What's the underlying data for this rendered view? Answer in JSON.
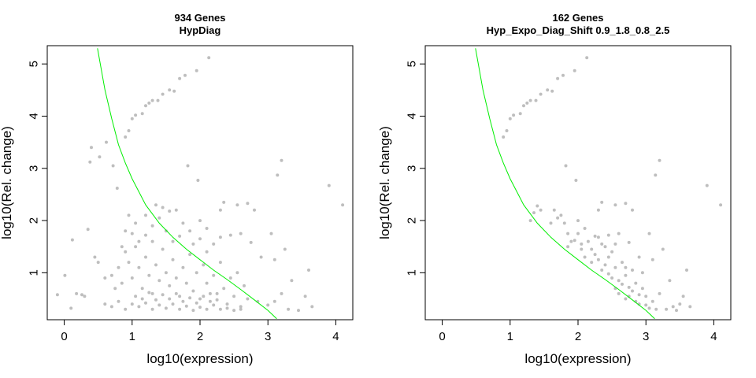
{
  "chart_data": [
    {
      "type": "scatter",
      "title": "934 Genes",
      "subtitle": "HypDiag",
      "xlabel": "log10(expression)",
      "ylabel": "log10(Rel. change)",
      "xlim": [
        -0.25,
        4.25
      ],
      "ylim": [
        0.1,
        5.35
      ],
      "xticks": [
        "0",
        "1",
        "2",
        "3",
        "4"
      ],
      "yticks": [
        "1",
        "2",
        "3",
        "4",
        "5"
      ],
      "grid": false,
      "point_color": "#bebebe",
      "curve_color": "#00ee00",
      "curve": [
        [
          0.49,
          5.3
        ],
        [
          0.6,
          4.5
        ],
        [
          0.7,
          3.95
        ],
        [
          0.8,
          3.45
        ],
        [
          0.9,
          3.1
        ],
        [
          1.0,
          2.8
        ],
        [
          1.2,
          2.3
        ],
        [
          1.4,
          1.95
        ],
        [
          1.6,
          1.68
        ],
        [
          1.8,
          1.45
        ],
        [
          2.0,
          1.25
        ],
        [
          2.2,
          1.05
        ],
        [
          2.4,
          0.87
        ],
        [
          2.6,
          0.68
        ],
        [
          2.8,
          0.48
        ],
        [
          3.0,
          0.28
        ],
        [
          3.13,
          0.12
        ]
      ],
      "points": [
        [
          1.78,
          4.78
        ],
        [
          2.13,
          5.12
        ],
        [
          1.95,
          4.87
        ],
        [
          1.55,
          4.5
        ],
        [
          1.45,
          4.42
        ],
        [
          1.3,
          4.3
        ],
        [
          1.25,
          4.25
        ],
        [
          1.2,
          4.2
        ],
        [
          1.05,
          4.02
        ],
        [
          1.0,
          3.95
        ],
        [
          1.15,
          4.05
        ],
        [
          0.95,
          3.72
        ],
        [
          0.9,
          3.6
        ],
        [
          1.62,
          4.48
        ],
        [
          1.7,
          4.72
        ],
        [
          1.38,
          4.3
        ],
        [
          0.4,
          3.4
        ],
        [
          0.52,
          3.22
        ],
        [
          0.62,
          3.5
        ],
        [
          0.38,
          3.12
        ],
        [
          0.72,
          3.05
        ],
        [
          0.78,
          2.62
        ],
        [
          3.2,
          3.15
        ],
        [
          3.14,
          2.87
        ],
        [
          3.9,
          2.67
        ],
        [
          4.1,
          2.3
        ],
        [
          1.97,
          2.77
        ],
        [
          1.82,
          3.05
        ],
        [
          0.12,
          1.63
        ],
        [
          0.35,
          1.83
        ],
        [
          0.18,
          0.6
        ],
        [
          0.01,
          0.95
        ],
        [
          -0.1,
          0.58
        ],
        [
          0.1,
          0.32
        ],
        [
          0.26,
          0.58
        ],
        [
          0.3,
          0.55
        ],
        [
          0.95,
          2.1
        ],
        [
          1.05,
          1.95
        ],
        [
          1.2,
          1.72
        ],
        [
          1.3,
          1.9
        ],
        [
          1.4,
          2.05
        ],
        [
          1.45,
          2.25
        ],
        [
          1.55,
          2.18
        ],
        [
          1.65,
          2.2
        ],
        [
          1.75,
          1.95
        ],
        [
          1.85,
          1.8
        ],
        [
          2.0,
          2.0
        ],
        [
          2.1,
          1.85
        ],
        [
          2.3,
          2.2
        ],
        [
          2.35,
          2.35
        ],
        [
          2.55,
          2.3
        ],
        [
          2.7,
          2.33
        ],
        [
          2.8,
          2.2
        ],
        [
          2.3,
          1.68
        ],
        [
          2.45,
          1.72
        ],
        [
          2.6,
          1.75
        ],
        [
          2.75,
          1.58
        ],
        [
          3.05,
          1.75
        ],
        [
          2.9,
          1.3
        ],
        [
          3.1,
          1.25
        ],
        [
          3.25,
          1.45
        ],
        [
          3.35,
          0.85
        ],
        [
          3.55,
          0.55
        ],
        [
          3.65,
          0.35
        ],
        [
          3.45,
          0.28
        ],
        [
          3.3,
          0.3
        ],
        [
          3.6,
          1.05
        ],
        [
          3.2,
          0.6
        ],
        [
          3.1,
          0.45
        ],
        [
          3.0,
          0.38
        ],
        [
          2.85,
          0.45
        ],
        [
          2.7,
          0.5
        ],
        [
          0.5,
          1.2
        ],
        [
          0.45,
          1.3
        ],
        [
          0.6,
          0.9
        ],
        [
          0.7,
          0.95
        ],
        [
          0.75,
          0.7
        ],
        [
          0.8,
          1.1
        ],
        [
          0.85,
          0.8
        ],
        [
          0.9,
          1.4
        ],
        [
          0.95,
          1.2
        ],
        [
          1.0,
          0.9
        ],
        [
          1.05,
          1.5
        ],
        [
          1.1,
          1.1
        ],
        [
          1.15,
          0.7
        ],
        [
          1.2,
          1.3
        ],
        [
          1.25,
          0.95
        ],
        [
          1.3,
          0.6
        ],
        [
          1.35,
          1.15
        ],
        [
          1.4,
          0.85
        ],
        [
          1.45,
          1.45
        ],
        [
          1.5,
          1.0
        ],
        [
          1.55,
          0.75
        ],
        [
          1.6,
          1.25
        ],
        [
          1.65,
          0.9
        ],
        [
          1.7,
          0.55
        ],
        [
          1.75,
          1.1
        ],
        [
          1.8,
          0.8
        ],
        [
          1.85,
          1.35
        ],
        [
          1.9,
          0.65
        ],
        [
          1.95,
          1.0
        ],
        [
          2.0,
          0.5
        ],
        [
          2.05,
          1.15
        ],
        [
          2.1,
          0.8
        ],
        [
          2.15,
          0.45
        ],
        [
          2.2,
          0.95
        ],
        [
          2.25,
          0.6
        ],
        [
          2.3,
          1.2
        ],
        [
          2.35,
          0.7
        ],
        [
          2.4,
          0.4
        ],
        [
          2.45,
          0.9
        ],
        [
          2.5,
          0.55
        ],
        [
          2.55,
          1.0
        ],
        [
          2.6,
          0.35
        ],
        [
          2.65,
          0.75
        ],
        [
          0.6,
          0.4
        ],
        [
          0.7,
          0.35
        ],
        [
          0.8,
          0.45
        ],
        [
          0.9,
          0.3
        ],
        [
          1.0,
          0.4
        ],
        [
          1.1,
          0.35
        ],
        [
          1.2,
          0.42
        ],
        [
          1.3,
          0.3
        ],
        [
          1.4,
          0.38
        ],
        [
          1.5,
          0.32
        ],
        [
          1.6,
          0.4
        ],
        [
          1.7,
          0.3
        ],
        [
          1.8,
          0.36
        ],
        [
          1.9,
          0.28
        ],
        [
          2.0,
          0.34
        ],
        [
          2.1,
          0.3
        ],
        [
          2.2,
          0.38
        ],
        [
          2.3,
          0.3
        ],
        [
          2.4,
          0.32
        ],
        [
          2.5,
          0.28
        ],
        [
          2.6,
          0.3
        ],
        [
          1.05,
          0.55
        ],
        [
          1.15,
          0.5
        ],
        [
          1.25,
          0.62
        ],
        [
          1.35,
          0.48
        ],
        [
          1.45,
          0.58
        ],
        [
          1.55,
          0.5
        ],
        [
          1.65,
          0.6
        ],
        [
          1.75,
          0.45
        ],
        [
          1.85,
          0.52
        ],
        [
          1.95,
          0.42
        ],
        [
          2.05,
          0.55
        ],
        [
          2.15,
          0.6
        ],
        [
          2.25,
          0.48
        ],
        [
          1.5,
          1.8
        ],
        [
          1.6,
          1.6
        ],
        [
          1.7,
          1.7
        ],
        [
          1.9,
          1.55
        ],
        [
          2.0,
          1.65
        ],
        [
          2.1,
          1.4
        ],
        [
          2.2,
          1.55
        ],
        [
          1.3,
          1.6
        ],
        [
          1.1,
          1.6
        ],
        [
          1.0,
          1.75
        ],
        [
          0.9,
          1.8
        ],
        [
          0.85,
          1.5
        ],
        [
          1.2,
          2.1
        ],
        [
          1.35,
          2.3
        ]
      ]
    },
    {
      "type": "scatter",
      "title": "162 Genes",
      "subtitle": "Hyp_Expo_Diag_Shift 0.9_1.8_0.8_2.5",
      "xlabel": "log10(expression)",
      "ylabel": "log10(Rel. change)",
      "xlim": [
        -0.25,
        4.25
      ],
      "ylim": [
        0.1,
        5.35
      ],
      "xticks": [
        "0",
        "1",
        "2",
        "3",
        "4"
      ],
      "yticks": [
        "1",
        "2",
        "3",
        "4",
        "5"
      ],
      "grid": false,
      "point_color": "#bebebe",
      "curve_color": "#00ee00",
      "curve": [
        [
          0.49,
          5.3
        ],
        [
          0.6,
          4.5
        ],
        [
          0.7,
          3.95
        ],
        [
          0.8,
          3.45
        ],
        [
          0.9,
          3.1
        ],
        [
          1.0,
          2.8
        ],
        [
          1.2,
          2.3
        ],
        [
          1.4,
          1.95
        ],
        [
          1.6,
          1.68
        ],
        [
          1.8,
          1.45
        ],
        [
          2.0,
          1.25
        ],
        [
          2.2,
          1.05
        ],
        [
          2.4,
          0.87
        ],
        [
          2.6,
          0.68
        ],
        [
          2.8,
          0.48
        ],
        [
          3.0,
          0.28
        ],
        [
          3.13,
          0.12
        ]
      ],
      "points": [
        [
          1.78,
          4.78
        ],
        [
          2.13,
          5.12
        ],
        [
          1.95,
          4.87
        ],
        [
          1.55,
          4.5
        ],
        [
          1.45,
          4.42
        ],
        [
          1.3,
          4.3
        ],
        [
          1.25,
          4.25
        ],
        [
          1.2,
          4.2
        ],
        [
          1.05,
          4.02
        ],
        [
          1.0,
          3.95
        ],
        [
          1.15,
          4.05
        ],
        [
          0.95,
          3.72
        ],
        [
          0.9,
          3.6
        ],
        [
          1.62,
          4.48
        ],
        [
          1.7,
          4.72
        ],
        [
          1.38,
          4.3
        ],
        [
          3.2,
          3.15
        ],
        [
          3.14,
          2.87
        ],
        [
          3.9,
          2.67
        ],
        [
          4.1,
          2.3
        ],
        [
          1.97,
          2.77
        ],
        [
          1.82,
          3.05
        ],
        [
          1.3,
          2.0
        ],
        [
          1.35,
          2.15
        ],
        [
          1.4,
          2.28
        ],
        [
          1.45,
          2.2
        ],
        [
          1.6,
          1.95
        ],
        [
          1.65,
          2.2
        ],
        [
          1.75,
          2.1
        ],
        [
          1.85,
          1.75
        ],
        [
          1.95,
          1.62
        ],
        [
          2.0,
          2.0
        ],
        [
          2.1,
          1.85
        ],
        [
          2.3,
          2.2
        ],
        [
          2.35,
          2.35
        ],
        [
          2.55,
          2.3
        ],
        [
          2.7,
          2.33
        ],
        [
          2.8,
          2.2
        ],
        [
          2.3,
          1.68
        ],
        [
          2.45,
          1.72
        ],
        [
          2.6,
          1.75
        ],
        [
          2.75,
          1.58
        ],
        [
          3.05,
          1.75
        ],
        [
          2.9,
          1.3
        ],
        [
          3.1,
          1.25
        ],
        [
          3.25,
          1.45
        ],
        [
          3.35,
          0.85
        ],
        [
          3.55,
          0.55
        ],
        [
          3.65,
          0.35
        ],
        [
          3.45,
          0.28
        ],
        [
          3.3,
          0.3
        ],
        [
          3.6,
          1.05
        ],
        [
          3.2,
          0.6
        ],
        [
          3.1,
          0.45
        ],
        [
          3.0,
          0.38
        ],
        [
          2.85,
          0.45
        ],
        [
          2.7,
          0.5
        ],
        [
          1.85,
          1.5
        ],
        [
          1.9,
          1.6
        ],
        [
          2.05,
          1.45
        ],
        [
          2.1,
          1.3
        ],
        [
          2.2,
          1.2
        ],
        [
          2.25,
          1.35
        ],
        [
          2.35,
          1.05
        ],
        [
          2.4,
          1.15
        ],
        [
          2.45,
          0.98
        ],
        [
          2.5,
          0.9
        ],
        [
          2.55,
          1.1
        ],
        [
          2.6,
          0.85
        ],
        [
          2.65,
          0.78
        ],
        [
          2.7,
          0.95
        ],
        [
          2.75,
          0.72
        ],
        [
          2.8,
          0.65
        ],
        [
          2.85,
          0.8
        ],
        [
          2.9,
          0.58
        ],
        [
          2.95,
          0.7
        ],
        [
          3.0,
          0.55
        ],
        [
          2.15,
          1.6
        ],
        [
          2.25,
          1.7
        ],
        [
          2.4,
          1.5
        ],
        [
          2.5,
          1.4
        ],
        [
          2.65,
          1.2
        ],
        [
          2.8,
          1.05
        ],
        [
          2.95,
          1.0
        ],
        [
          2.2,
          1.45
        ],
        [
          2.7,
          1.1
        ],
        [
          2.6,
          0.6
        ],
        [
          2.75,
          0.55
        ],
        [
          2.9,
          0.4
        ],
        [
          3.05,
          0.32
        ],
        [
          3.15,
          0.3
        ],
        [
          2.55,
          0.7
        ],
        [
          2.45,
          1.3
        ],
        [
          2.35,
          1.55
        ],
        [
          2.0,
          1.75
        ],
        [
          1.8,
          1.95
        ],
        [
          1.7,
          2.05
        ],
        [
          3.4,
          0.35
        ],
        [
          3.5,
          0.4
        ],
        [
          2.05,
          1.55
        ],
        [
          2.3,
          1.25
        ],
        [
          2.55,
          1.55
        ]
      ]
    }
  ]
}
